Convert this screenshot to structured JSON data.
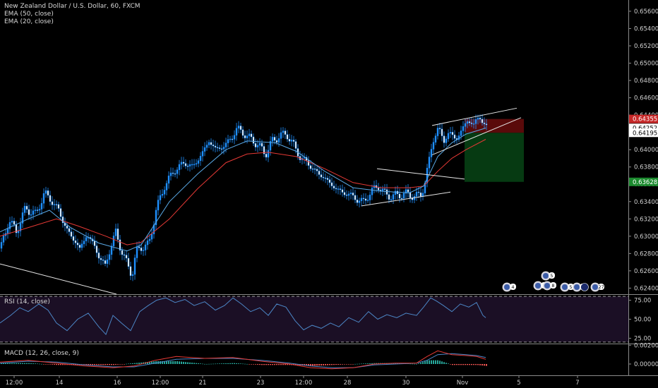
{
  "header": {
    "symbol_line": "New Zealand Dollar / U.S. Dollar, 60, FXCM",
    "ema50_label": "EMA (50, close)",
    "ema20_label": "EMA (20, close)"
  },
  "rsi_panel": {
    "label": "RSI (14, close)"
  },
  "macd_panel": {
    "label": "MACD (12, 26, close, 9)"
  },
  "events": [
    {
      "label": "4"
    },
    {
      "label": "2"
    },
    {
      "label": "5"
    },
    {
      "label": "8"
    },
    {
      "label": "5"
    },
    {
      "label": "1"
    },
    {
      "label": "27"
    }
  ],
  "colors": {
    "background": "#000000",
    "candle": "#1e90ff",
    "ema50": "#e53935",
    "ema20": "#5aa9e6",
    "rsi_line": "#4c86c6",
    "rsi_band": "#1b0f25",
    "macd_line": "#e53935",
    "signal_line": "#4c86c6",
    "hist_up": "#26a69a",
    "hist_down": "#ef5350",
    "stop_zone": "#5a0a0a",
    "target_zone": "#063a12"
  },
  "chart_data": [
    {
      "type": "candlestick",
      "x_ticks": [
        "12:00",
        "14",
        "16",
        "12:00",
        "21",
        "23",
        "12:00",
        "28",
        "30",
        "Nov",
        "5",
        "7"
      ],
      "y_ticks": [
        "0.65600",
        "0.65400",
        "0.65200",
        "0.65000",
        "0.64800",
        "0.64600",
        "0.64400",
        "0.64200",
        "0.64000",
        "0.63800",
        "0.63600",
        "0.63400",
        "0.63200",
        "0.63000",
        "0.62800",
        "0.62600",
        "0.62400"
      ],
      "ylim": [
        0.6233,
        0.6573
      ],
      "close_path": [
        [
          0,
          0.6286
        ],
        [
          12,
          0.6319
        ],
        [
          22,
          0.6305
        ],
        [
          35,
          0.6332
        ],
        [
          50,
          0.6325
        ],
        [
          62,
          0.635
        ],
        [
          70,
          0.6343
        ],
        [
          82,
          0.633
        ],
        [
          95,
          0.6305
        ],
        [
          105,
          0.6295
        ],
        [
          112,
          0.6285
        ],
        [
          122,
          0.6302
        ],
        [
          132,
          0.629
        ],
        [
          140,
          0.6275
        ],
        [
          148,
          0.6266
        ],
        [
          155,
          0.6285
        ],
        [
          163,
          0.6305
        ],
        [
          170,
          0.6285
        ],
        [
          178,
          0.627
        ],
        [
          186,
          0.6255
        ],
        [
          192,
          0.6282
        ],
        [
          200,
          0.6288
        ],
        [
          210,
          0.629
        ],
        [
          220,
          0.633
        ],
        [
          232,
          0.6358
        ],
        [
          245,
          0.6375
        ],
        [
          260,
          0.6385
        ],
        [
          272,
          0.638
        ],
        [
          285,
          0.6395
        ],
        [
          295,
          0.641
        ],
        [
          305,
          0.64
        ],
        [
          318,
          0.6405
        ],
        [
          328,
          0.6415
        ],
        [
          335,
          0.6425
        ],
        [
          345,
          0.6418
        ],
        [
          355,
          0.6412
        ],
        [
          365,
          0.6405
        ],
        [
          375,
          0.6395
        ],
        [
          385,
          0.641
        ],
        [
          395,
          0.6416
        ],
        [
          405,
          0.6418
        ],
        [
          415,
          0.6405
        ],
        [
          425,
          0.639
        ],
        [
          435,
          0.6385
        ],
        [
          445,
          0.6375
        ],
        [
          455,
          0.637
        ],
        [
          465,
          0.6362
        ],
        [
          475,
          0.6355
        ],
        [
          485,
          0.635
        ],
        [
          495,
          0.6348
        ],
        [
          505,
          0.6342
        ],
        [
          515,
          0.634
        ],
        [
          525,
          0.6352
        ],
        [
          535,
          0.6358
        ],
        [
          545,
          0.6348
        ],
        [
          555,
          0.6346
        ],
        [
          565,
          0.6348
        ],
        [
          575,
          0.6349
        ],
        [
          585,
          0.6346
        ],
        [
          595,
          0.6348
        ],
        [
          600,
          0.6358
        ],
        [
          605,
          0.638
        ],
        [
          612,
          0.641
        ],
        [
          620,
          0.6425
        ],
        [
          628,
          0.641
        ],
        [
          635,
          0.642
        ],
        [
          645,
          0.6412
        ],
        [
          655,
          0.6425
        ],
        [
          662,
          0.6435
        ],
        [
          670,
          0.6428
        ],
        [
          678,
          0.644
        ],
        [
          685,
          0.6428
        ],
        [
          688,
          0.6425
        ]
      ],
      "series": [
        {
          "name": "EMA (50, close)",
          "values": [
            [
              0,
              0.63
            ],
            [
              40,
              0.631
            ],
            [
              80,
              0.632
            ],
            [
              110,
              0.6312
            ],
            [
              150,
              0.63
            ],
            [
              180,
              0.629
            ],
            [
              200,
              0.6293
            ],
            [
              240,
              0.632
            ],
            [
              280,
              0.6355
            ],
            [
              320,
              0.6385
            ],
            [
              350,
              0.6395
            ],
            [
              380,
              0.6397
            ],
            [
              420,
              0.6392
            ],
            [
              460,
              0.6378
            ],
            [
              500,
              0.6362
            ],
            [
              540,
              0.6356
            ],
            [
              580,
              0.6356
            ],
            [
              600,
              0.6358
            ],
            [
              620,
              0.6375
            ],
            [
              640,
              0.639
            ],
            [
              660,
              0.64
            ],
            [
              688,
              0.6412
            ]
          ]
        },
        {
          "name": "EMA (20, close)",
          "values": [
            [
              0,
              0.6305
            ],
            [
              40,
              0.632
            ],
            [
              70,
              0.633
            ],
            [
              100,
              0.631
            ],
            [
              140,
              0.6292
            ],
            [
              180,
              0.6283
            ],
            [
              200,
              0.629
            ],
            [
              240,
              0.634
            ],
            [
              280,
              0.6372
            ],
            [
              320,
              0.64
            ],
            [
              350,
              0.641
            ],
            [
              390,
              0.6408
            ],
            [
              420,
              0.6398
            ],
            [
              460,
              0.6375
            ],
            [
              500,
              0.6356
            ],
            [
              540,
              0.6352
            ],
            [
              580,
              0.635
            ],
            [
              600,
              0.6358
            ],
            [
              620,
              0.6392
            ],
            [
              640,
              0.6408
            ],
            [
              660,
              0.6418
            ],
            [
              688,
              0.6425
            ]
          ]
        }
      ],
      "price_labels": [
        {
          "value": "0.64355",
          "color": "#c62828"
        },
        {
          "value": "0.64252",
          "color": "#ffffff"
        },
        {
          "value": "0.64195",
          "color": "#ffffff"
        },
        {
          "value": "0.63628",
          "color": "#1b8a2e"
        }
      ],
      "position": {
        "entry": 0.64195,
        "stop": 0.64355,
        "target": 0.63628
      },
      "drawings": [
        {
          "name": "upper-channel-line",
          "from": [
            612,
            0.6428
          ],
          "to": [
            732,
            0.6448
          ]
        },
        {
          "name": "lower-channel-line",
          "from": [
            612,
            0.6394
          ],
          "to": [
            738,
            0.6437
          ]
        },
        {
          "name": "triangle-upper-line",
          "from": [
            534,
            0.6378
          ],
          "to": [
            658,
            0.6366
          ]
        },
        {
          "name": "triangle-lower-line",
          "from": [
            512,
            0.6335
          ],
          "to": [
            638,
            0.6351
          ]
        },
        {
          "name": "trendline",
          "from": [
            0,
            0.6268
          ],
          "to": [
            165,
            0.6233
          ]
        }
      ]
    },
    {
      "type": "line",
      "name": "RSI",
      "y_ticks": [
        "75.00",
        "50.00",
        "25.00"
      ],
      "ylim": [
        18,
        82
      ],
      "bands": [
        80,
        20
      ],
      "values": [
        [
          0,
          45
        ],
        [
          15,
          55
        ],
        [
          28,
          65
        ],
        [
          40,
          60
        ],
        [
          55,
          70
        ],
        [
          68,
          62
        ],
        [
          80,
          45
        ],
        [
          95,
          35
        ],
        [
          110,
          50
        ],
        [
          125,
          58
        ],
        [
          140,
          40
        ],
        [
          150,
          30
        ],
        [
          160,
          55
        ],
        [
          172,
          45
        ],
        [
          185,
          35
        ],
        [
          198,
          60
        ],
        [
          210,
          68
        ],
        [
          222,
          75
        ],
        [
          235,
          78
        ],
        [
          248,
          72
        ],
        [
          262,
          76
        ],
        [
          275,
          68
        ],
        [
          290,
          73
        ],
        [
          305,
          62
        ],
        [
          318,
          68
        ],
        [
          330,
          78
        ],
        [
          342,
          70
        ],
        [
          355,
          60
        ],
        [
          368,
          65
        ],
        [
          380,
          55
        ],
        [
          392,
          70
        ],
        [
          405,
          66
        ],
        [
          418,
          48
        ],
        [
          430,
          36
        ],
        [
          442,
          42
        ],
        [
          455,
          38
        ],
        [
          468,
          45
        ],
        [
          480,
          40
        ],
        [
          494,
          52
        ],
        [
          508,
          46
        ],
        [
          522,
          60
        ],
        [
          535,
          50
        ],
        [
          548,
          56
        ],
        [
          562,
          52
        ],
        [
          575,
          58
        ],
        [
          590,
          55
        ],
        [
          600,
          66
        ],
        [
          610,
          78
        ],
        [
          618,
          74
        ],
        [
          628,
          68
        ],
        [
          640,
          60
        ],
        [
          652,
          70
        ],
        [
          664,
          66
        ],
        [
          675,
          72
        ],
        [
          684,
          55
        ],
        [
          688,
          52
        ]
      ]
    },
    {
      "type": "bar+line",
      "name": "MACD",
      "y_ticks": [
        "0.00200",
        "0.00000"
      ],
      "ylim": [
        -0.0012,
        0.0021
      ],
      "macd": [
        [
          0,
          0.0002
        ],
        [
          40,
          0.0004
        ],
        [
          80,
          0.0001
        ],
        [
          120,
          -0.0002
        ],
        [
          160,
          -0.0004
        ],
        [
          190,
          -0.0002
        ],
        [
          220,
          0.0004
        ],
        [
          250,
          0.0008
        ],
        [
          290,
          0.0006
        ],
        [
          330,
          0.0007
        ],
        [
          370,
          0.0003
        ],
        [
          410,
          0.0
        ],
        [
          440,
          -0.0004
        ],
        [
          470,
          -0.0005
        ],
        [
          500,
          -0.0004
        ],
        [
          530,
          0.0
        ],
        [
          560,
          0.0001
        ],
        [
          590,
          0.0001
        ],
        [
          605,
          0.0008
        ],
        [
          620,
          0.0014
        ],
        [
          640,
          0.001
        ],
        [
          660,
          0.0009
        ],
        [
          675,
          0.0008
        ],
        [
          688,
          0.0005
        ]
      ],
      "signal": [
        [
          0,
          0.0001
        ],
        [
          40,
          0.0003
        ],
        [
          80,
          0.0002
        ],
        [
          120,
          -0.0001
        ],
        [
          160,
          -0.0003
        ],
        [
          190,
          -0.0003
        ],
        [
          220,
          0.0001
        ],
        [
          250,
          0.0005
        ],
        [
          290,
          0.0006
        ],
        [
          330,
          0.0006
        ],
        [
          370,
          0.0004
        ],
        [
          410,
          0.0001
        ],
        [
          440,
          -0.0002
        ],
        [
          470,
          -0.0004
        ],
        [
          500,
          -0.0004
        ],
        [
          530,
          -0.0001
        ],
        [
          560,
          0.0
        ],
        [
          590,
          0.0001
        ],
        [
          605,
          0.0004
        ],
        [
          620,
          0.001
        ],
        [
          640,
          0.0011
        ],
        [
          660,
          0.001
        ],
        [
          675,
          0.0009
        ],
        [
          688,
          0.0007
        ]
      ]
    }
  ]
}
